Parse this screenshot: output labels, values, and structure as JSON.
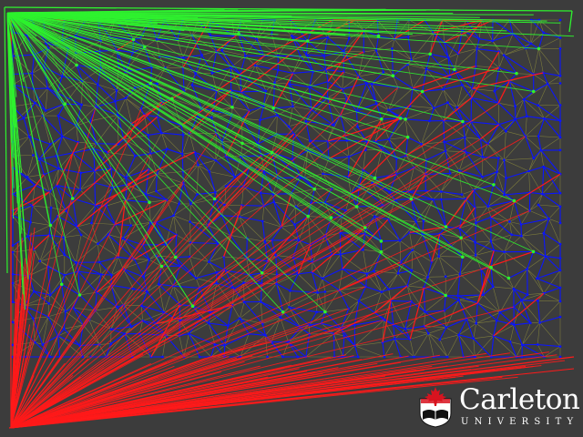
{
  "logo": {
    "name": "Carleton",
    "subtitle": "UNIVERSITY"
  },
  "colors": {
    "background": "#3c3c3c",
    "mesh": "#8c8b3c",
    "blue_tree": "#0a14ff",
    "green_fan": "#2ef22e",
    "red_fan": "#ff1a1a",
    "crest_red": "#d8131f",
    "crest_white": "#ffffff",
    "crest_black": "#111111"
  }
}
